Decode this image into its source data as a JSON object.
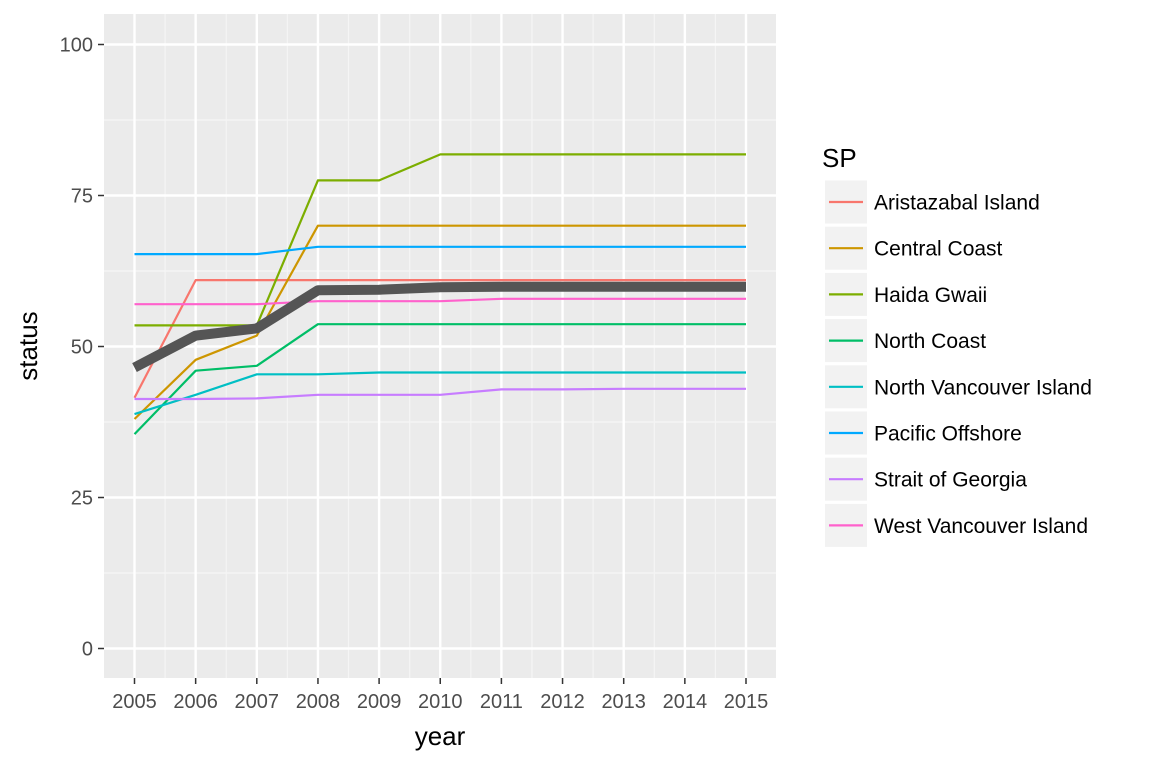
{
  "chart_data": {
    "type": "line",
    "title": "",
    "xlabel": "year",
    "ylabel": "status",
    "x": [
      2005,
      2006,
      2007,
      2008,
      2009,
      2010,
      2011,
      2012,
      2013,
      2014,
      2015
    ],
    "xlim": [
      2005,
      2015
    ],
    "ylim": [
      0,
      100
    ],
    "x_ticks": [
      "2005",
      "2006",
      "2007",
      "2008",
      "2009",
      "2010",
      "2011",
      "2012",
      "2013",
      "2014",
      "2015"
    ],
    "y_ticks": [
      "0",
      "25",
      "50",
      "75",
      "100"
    ],
    "grid": true,
    "legend": {
      "title": "SP",
      "position": "right"
    },
    "series": [
      {
        "name": "Aristazabal Island",
        "color": "#F8766D",
        "values": [
          41.5,
          61,
          61,
          61,
          61,
          61,
          61,
          61,
          61,
          61,
          61
        ]
      },
      {
        "name": "Central Coast",
        "color": "#CD9600",
        "values": [
          38,
          47.8,
          51.8,
          70,
          70,
          70,
          70,
          70,
          70,
          70,
          70
        ]
      },
      {
        "name": "Haida Gwaii",
        "color": "#7CAE00",
        "values": [
          53.5,
          53.5,
          53.5,
          77.5,
          77.5,
          81.8,
          81.8,
          81.8,
          81.8,
          81.8,
          81.8
        ]
      },
      {
        "name": "North Coast",
        "color": "#00BE67",
        "values": [
          35.5,
          46,
          46.8,
          53.7,
          53.7,
          53.7,
          53.7,
          53.7,
          53.7,
          53.7,
          53.7
        ]
      },
      {
        "name": "North Vancouver Island",
        "color": "#00BFC4",
        "values": [
          38.8,
          42,
          45.4,
          45.4,
          45.7,
          45.7,
          45.7,
          45.7,
          45.7,
          45.7,
          45.7
        ]
      },
      {
        "name": "Pacific Offshore",
        "color": "#00A9FF",
        "values": [
          65.3,
          65.3,
          65.3,
          66.5,
          66.5,
          66.5,
          66.5,
          66.5,
          66.5,
          66.5,
          66.5
        ]
      },
      {
        "name": "Strait of Georgia",
        "color": "#C77CFF",
        "values": [
          41.3,
          41.3,
          41.4,
          42,
          42,
          42,
          42.9,
          42.9,
          43,
          43,
          43
        ]
      },
      {
        "name": "West Vancouver Island",
        "color": "#FF61CC",
        "values": [
          57,
          57,
          57,
          57.5,
          57.5,
          57.5,
          57.9,
          57.9,
          57.9,
          57.9,
          57.9
        ]
      }
    ],
    "overall_series": {
      "color": "#555555",
      "values": [
        46.5,
        51.8,
        53,
        59.3,
        59.4,
        59.8,
        59.9,
        59.9,
        59.9,
        59.9,
        59.9
      ]
    }
  }
}
